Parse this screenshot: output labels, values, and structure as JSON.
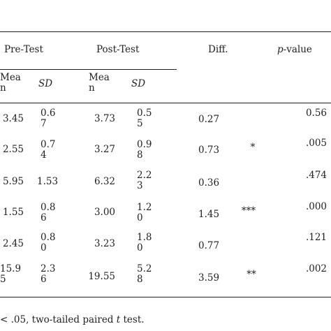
{
  "table": {
    "headers": {
      "pre_test": "Pre-Test",
      "post_test": "Post-Test",
      "diff": "Diff.",
      "p_value_italic": "p",
      "p_value_rest": "-value"
    },
    "subheaders": {
      "pre_mean_line1": "Mea",
      "pre_mean_line2": "n",
      "pre_sd": "SD",
      "post_mean_line1": "Mea",
      "post_mean_line2": "n",
      "post_sd": "SD"
    },
    "rows": [
      {
        "pre_mean": [
          "3.45",
          ""
        ],
        "pre_sd": [
          "0.6",
          "7"
        ],
        "post_mean": [
          "3.73",
          ""
        ],
        "post_sd": [
          "0.5",
          "5"
        ],
        "diff": "0.27",
        "sig": "",
        "p": "0.56"
      },
      {
        "pre_mean": [
          "2.55",
          ""
        ],
        "pre_sd": [
          "0.7",
          "4"
        ],
        "post_mean": [
          "3.27",
          ""
        ],
        "post_sd": [
          "0.9",
          "8"
        ],
        "diff": "0.73",
        "sig": "*",
        "p": ".005"
      },
      {
        "pre_mean": [
          "5.95",
          ""
        ],
        "pre_sd": [
          "1.53",
          ""
        ],
        "post_mean": [
          "6.32",
          ""
        ],
        "post_sd": [
          "2.2",
          "3"
        ],
        "diff": "0.36",
        "sig": "",
        "p": ".474"
      },
      {
        "pre_mean": [
          "1.55",
          ""
        ],
        "pre_sd": [
          "0.8",
          "6"
        ],
        "post_mean": [
          "3.00",
          ""
        ],
        "post_sd": [
          "1.2",
          "0"
        ],
        "diff": "1.45",
        "sig": "***",
        "p": ".000"
      },
      {
        "pre_mean": [
          "2.45",
          ""
        ],
        "pre_sd": [
          "0.8",
          "0"
        ],
        "post_mean": [
          "3.23",
          ""
        ],
        "post_sd": [
          "1.8",
          "0"
        ],
        "diff": "0.77",
        "sig": "",
        "p": ".121"
      },
      {
        "pre_mean": [
          "15.9",
          "5"
        ],
        "pre_sd": [
          "2.3",
          "6"
        ],
        "post_mean": [
          "19.55",
          ""
        ],
        "post_sd": [
          "5.2",
          "8"
        ],
        "diff": "3.59",
        "sig": "**",
        "p": ".002"
      }
    ]
  },
  "footnote": {
    "lead": "< .05, two-tailed paired ",
    "t": "t",
    "tail": " test."
  }
}
